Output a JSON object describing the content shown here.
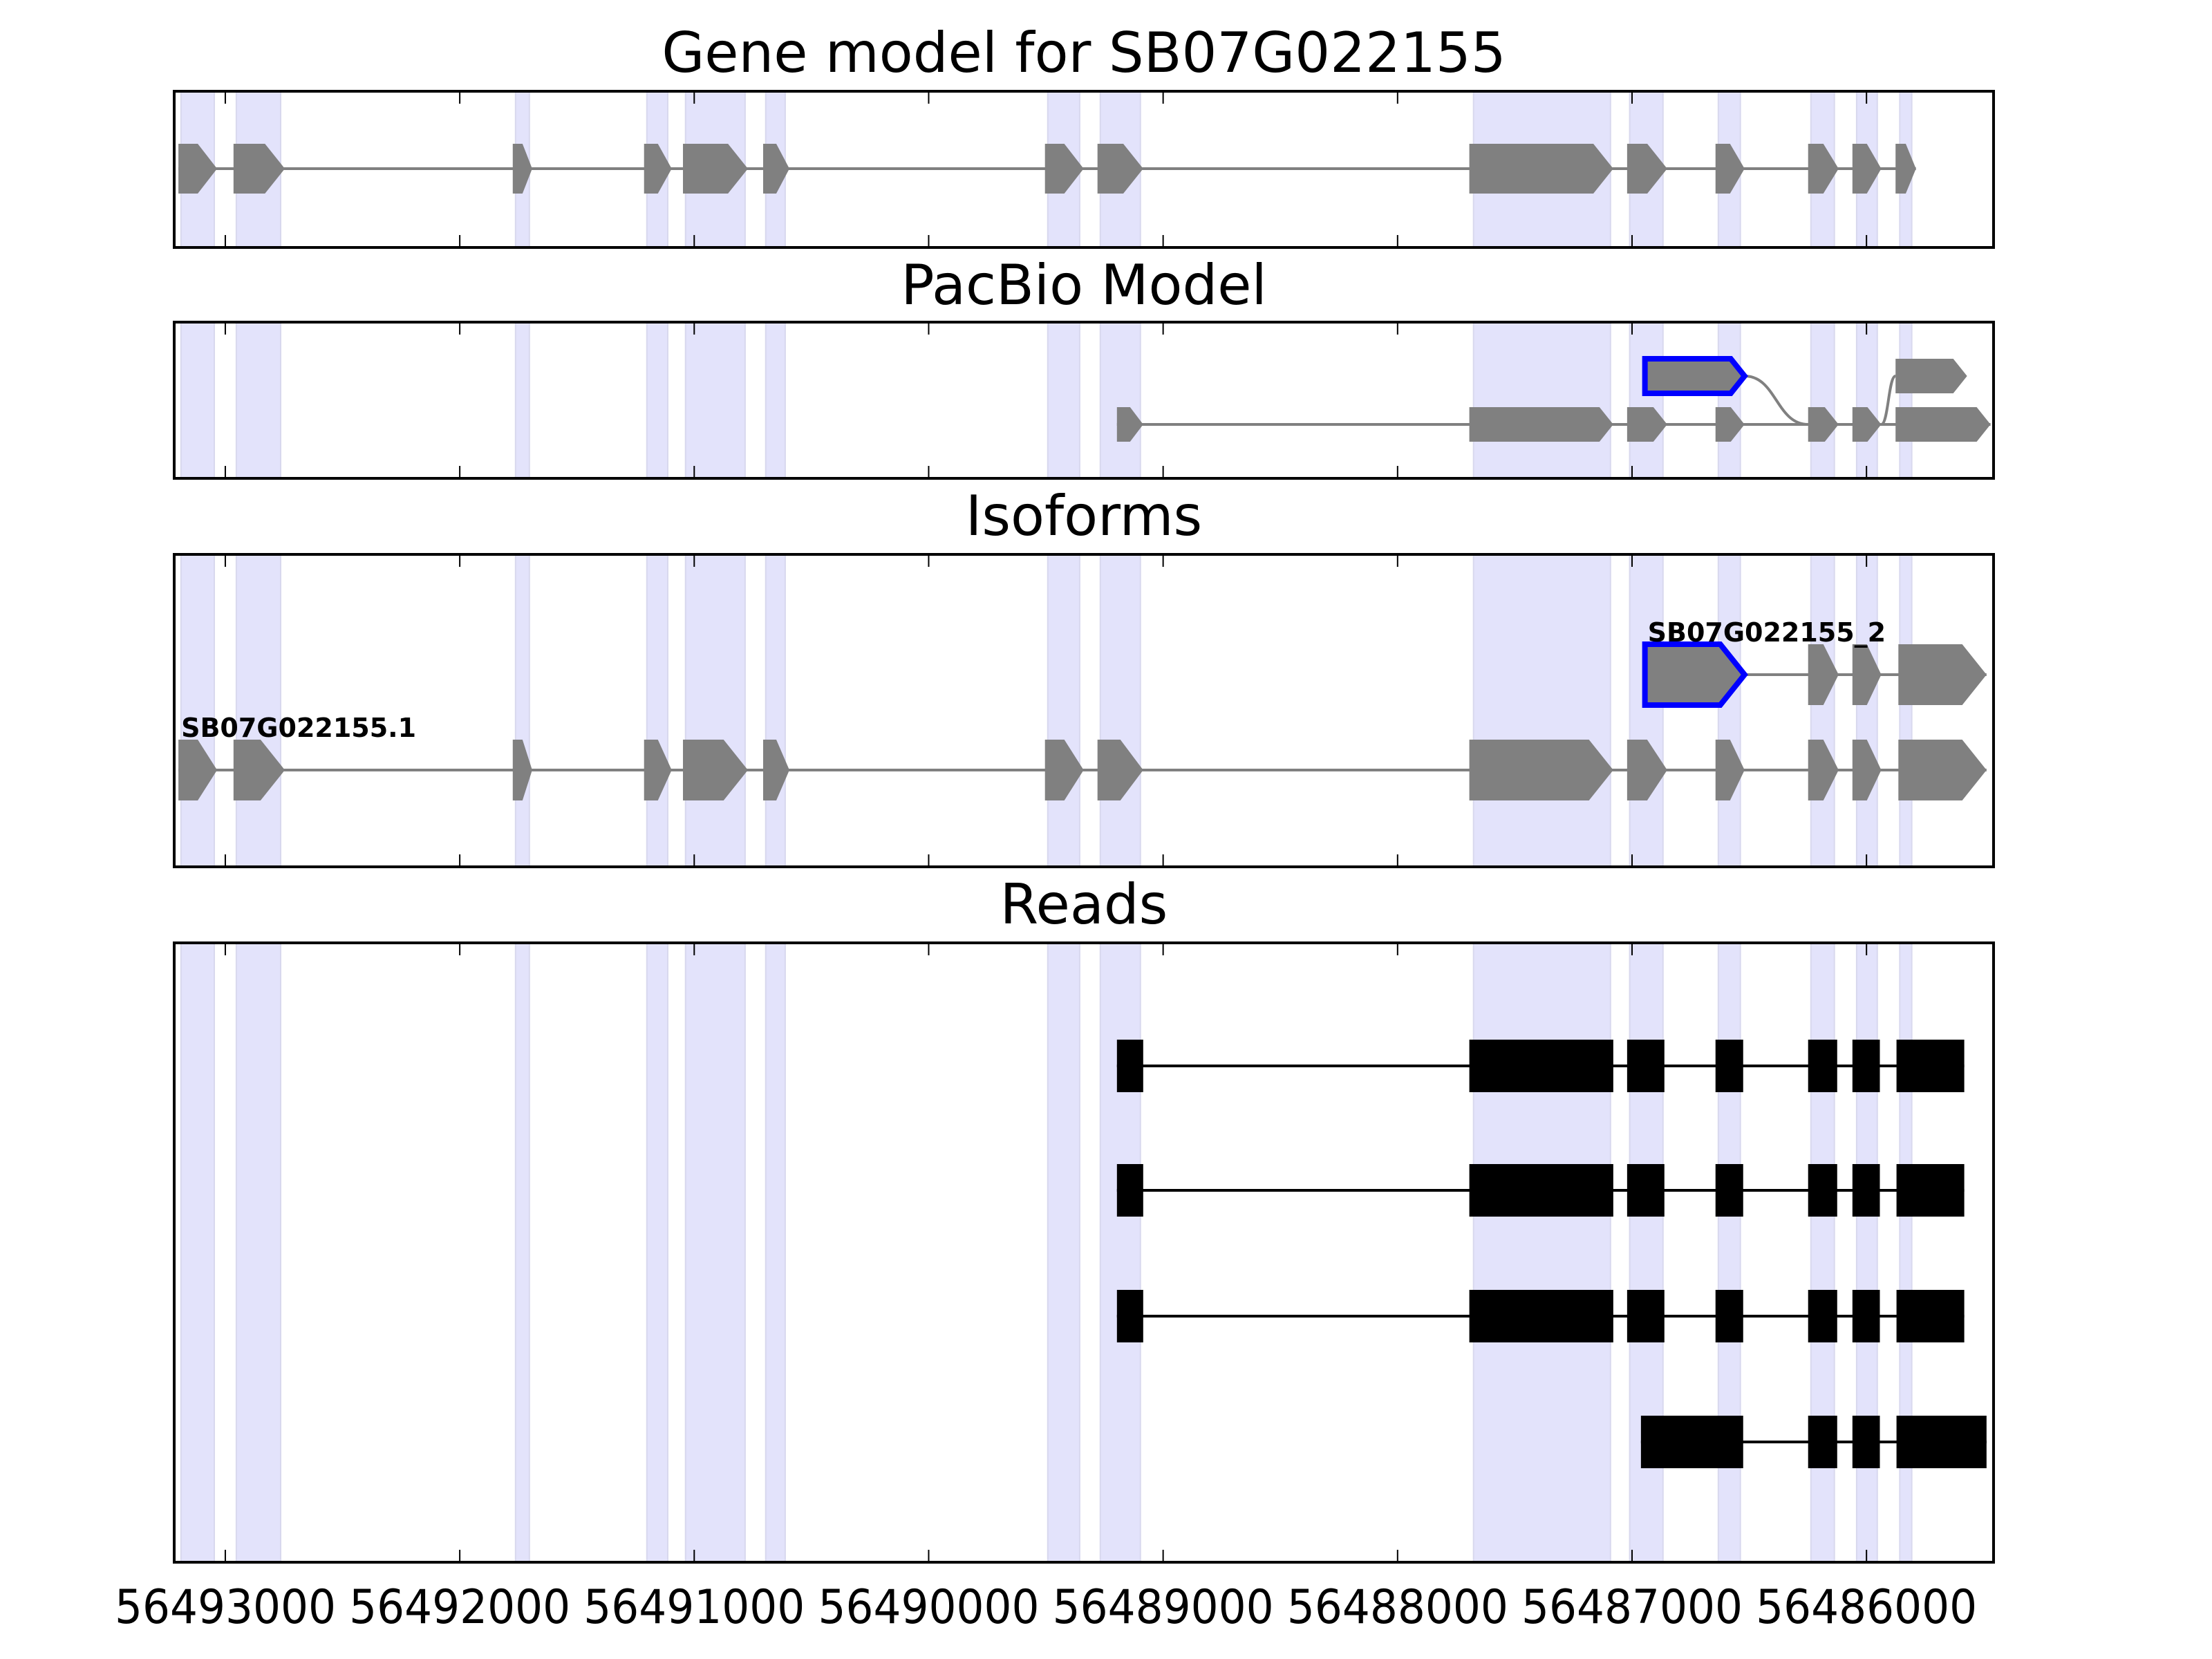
{
  "chart_data": {
    "type": "gene-track",
    "xlim": [
      56493218,
      56485458
    ],
    "xticks": [
      56493000,
      56492000,
      56491000,
      56490000,
      56489000,
      56488000,
      56487000,
      56486000
    ],
    "xtick_labels": [
      "56493000",
      "56492000",
      "56491000",
      "56490000",
      "56489000",
      "56488000",
      "56487000",
      "56486000"
    ],
    "colors": {
      "exon": "#808080",
      "intron": "#808080",
      "highlight": "#0000ff",
      "shade": "#e3e3fb",
      "read": "#000000"
    },
    "shaded_regions": [
      [
        56493189,
        56493047
      ],
      [
        56492953,
        56492764
      ],
      [
        56491762,
        56491703
      ],
      [
        56491202,
        56491113
      ],
      [
        56491037,
        56490783
      ],
      [
        56490695,
        56490612
      ],
      [
        56489492,
        56489356
      ],
      [
        56489268,
        56489097
      ],
      [
        56487676,
        56487092
      ],
      [
        56487010,
        56486868
      ],
      [
        56486632,
        56486538
      ],
      [
        56486237,
        56486137
      ],
      [
        56486042,
        56485954
      ],
      [
        56485858,
        56485807
      ]
    ],
    "panels": [
      {
        "title": "Gene model for SB07G022155",
        "kind": "model",
        "rows": [
          {
            "exons": [
              [
                56493200,
                56493035
              ],
              [
                56492965,
                56492746
              ],
              [
                56491774,
                56491691
              ],
              [
                56491214,
                56491096
              ],
              [
                56491048,
                56490771
              ],
              [
                56490706,
                56490594
              ],
              [
                56489504,
                56489339
              ],
              [
                56489280,
                56489085
              ],
              [
                56487694,
                56487080
              ],
              [
                56487021,
                56486850
              ],
              [
                56486644,
                56486520
              ],
              [
                56486249,
                56486119
              ],
              [
                56486060,
                56485937
              ],
              [
                56485876,
                56485789
              ]
            ]
          }
        ]
      },
      {
        "title": "PacBio Model",
        "kind": "pacbio",
        "rows": [
          {
            "exons": [
              [
                56489197,
                56489085
              ],
              [
                56487694,
                56487080
              ],
              [
                56487021,
                56486850
              ],
              [
                56486644,
                56486520
              ],
              [
                56486249,
                56486119
              ],
              [
                56486060,
                56485937
              ],
              [
                56485876,
                56485471
              ]
            ]
          },
          {
            "exons": [
              [
                56486945,
                56486520
              ],
              [
                56485876,
                56485571
              ]
            ],
            "highlight": [
              0
            ],
            "joins": [
              [
                56486520,
                56486249,
                "down"
              ],
              [
                56485937,
                56485876,
                "up"
              ]
            ]
          }
        ]
      },
      {
        "title": "Isoforms",
        "kind": "isoforms",
        "rows": [
          {
            "label": "SB07G022155.1",
            "exons": [
              [
                56493200,
                56493035
              ],
              [
                56492965,
                56492746
              ],
              [
                56491774,
                56491691
              ],
              [
                56491214,
                56491096
              ],
              [
                56491048,
                56490771
              ],
              [
                56490706,
                56490594
              ],
              [
                56489504,
                56489339
              ],
              [
                56489280,
                56489085
              ],
              [
                56487694,
                56487080
              ],
              [
                56487021,
                56486850
              ],
              [
                56486644,
                56486520
              ],
              [
                56486249,
                56486119
              ],
              [
                56486060,
                56485937
              ],
              [
                56485864,
                56485488
              ]
            ]
          },
          {
            "label": "SB07G022155_2",
            "exons": [
              [
                56486945,
                56486520
              ],
              [
                56486249,
                56486119
              ],
              [
                56486060,
                56485937
              ],
              [
                56485864,
                56485488
              ]
            ],
            "highlight": [
              0
            ]
          }
        ]
      },
      {
        "title": "Reads",
        "kind": "reads",
        "rows": [
          {
            "exons": [
              [
                56489197,
                56489085
              ],
              [
                56487694,
                56487080
              ],
              [
                56487021,
                56486862
              ],
              [
                56486644,
                56486526
              ],
              [
                56486249,
                56486125
              ],
              [
                56486060,
                56485943
              ],
              [
                56485872,
                56485583
              ]
            ]
          },
          {
            "exons": [
              [
                56489197,
                56489085
              ],
              [
                56487694,
                56487080
              ],
              [
                56487021,
                56486862
              ],
              [
                56486644,
                56486526
              ],
              [
                56486249,
                56486125
              ],
              [
                56486060,
                56485943
              ],
              [
                56485872,
                56485583
              ]
            ]
          },
          {
            "exons": [
              [
                56489197,
                56489085
              ],
              [
                56487694,
                56487080
              ],
              [
                56487021,
                56486862
              ],
              [
                56486644,
                56486526
              ],
              [
                56486249,
                56486125
              ],
              [
                56486060,
                56485943
              ],
              [
                56485872,
                56485583
              ]
            ]
          },
          {
            "exons": [
              [
                56486962,
                56486526
              ],
              [
                56486249,
                56486125
              ],
              [
                56486060,
                56485943
              ],
              [
                56485872,
                56485488
              ]
            ]
          }
        ]
      }
    ]
  }
}
